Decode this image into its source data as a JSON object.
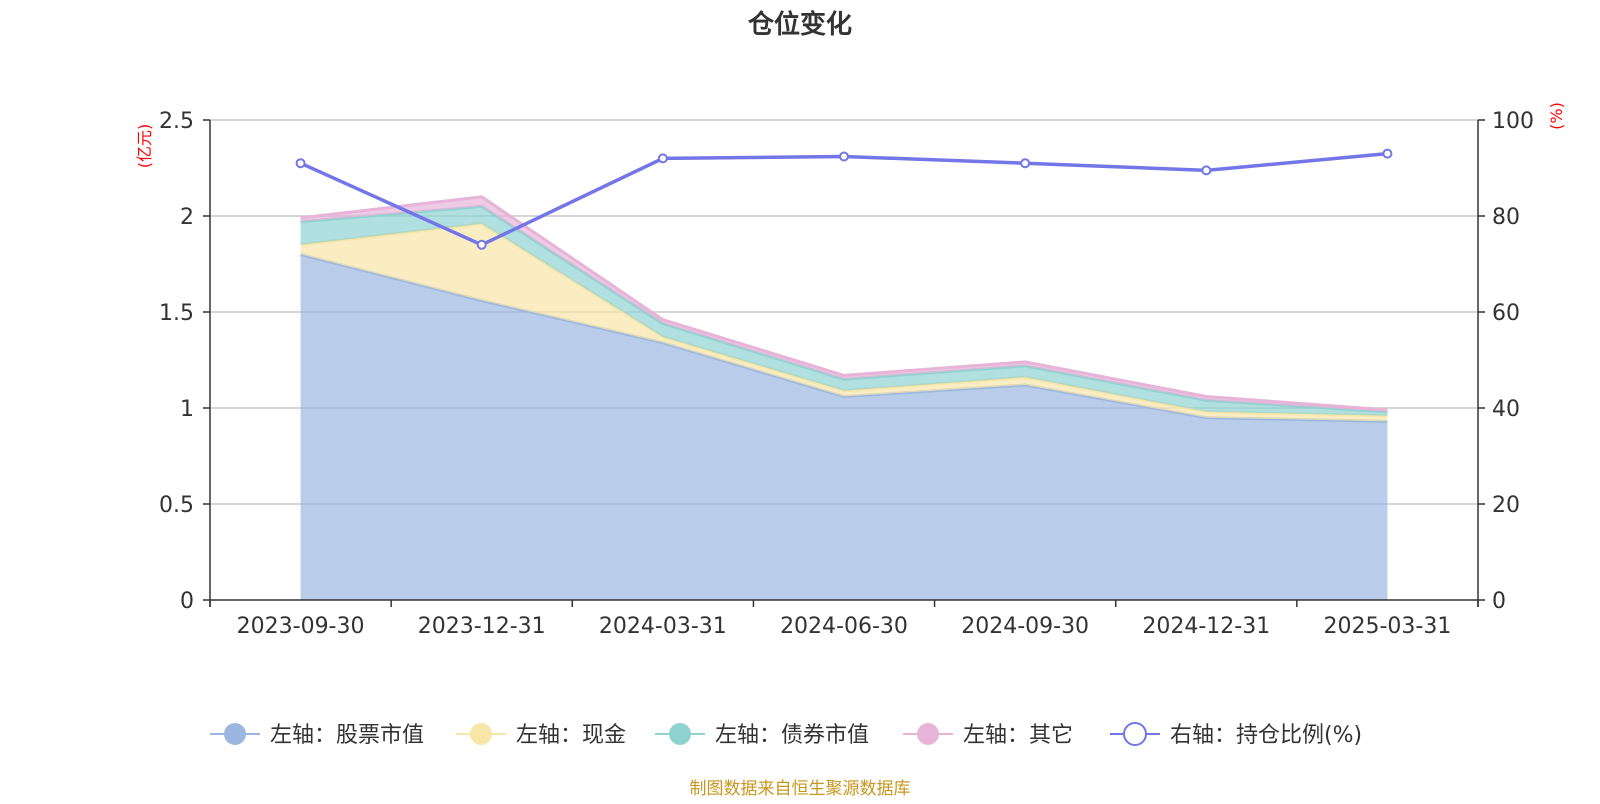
{
  "chart_data": {
    "type": "area",
    "title": "仓位变化",
    "categories": [
      "2023-09-30",
      "2023-12-31",
      "2024-03-31",
      "2024-06-30",
      "2024-09-30",
      "2024-12-31",
      "2025-03-31"
    ],
    "left_axis": {
      "unit": "(亿元)",
      "ylim": [
        0,
        2.5
      ],
      "ticks": [
        "0",
        "0.5",
        "1",
        "1.5",
        "2",
        "2.5"
      ]
    },
    "right_axis": {
      "unit": "(%)",
      "ylim": [
        0,
        100
      ],
      "ticks": [
        "0",
        "20",
        "40",
        "60",
        "80",
        "100"
      ]
    },
    "grid": true,
    "legend_position": "bottom",
    "series": [
      {
        "name": "左轴：股票市值",
        "axis": "left",
        "stacked": true,
        "color": "#9bb7e0",
        "values": [
          1.8,
          1.56,
          1.34,
          1.06,
          1.12,
          0.95,
          0.93
        ]
      },
      {
        "name": "左轴：现金",
        "axis": "left",
        "stacked": true,
        "color": "#f8e5a8",
        "values": [
          0.05,
          0.4,
          0.03,
          0.03,
          0.04,
          0.03,
          0.03
        ]
      },
      {
        "name": "左轴：债券市值",
        "axis": "left",
        "stacked": true,
        "color": "#8fd3d1",
        "values": [
          0.12,
          0.09,
          0.07,
          0.06,
          0.06,
          0.06,
          0.02
        ]
      },
      {
        "name": "左轴：其它",
        "axis": "left",
        "stacked": true,
        "color": "#e8b3d8",
        "values": [
          0.02,
          0.05,
          0.02,
          0.02,
          0.02,
          0.02,
          0.01
        ]
      },
      {
        "name": "右轴：持仓比例(%)",
        "axis": "right",
        "type": "line",
        "color": "#7376e8",
        "values": [
          91,
          74,
          92,
          92.4,
          91,
          89.5,
          93
        ]
      }
    ],
    "source": "制图数据来自恒生聚源数据库"
  }
}
